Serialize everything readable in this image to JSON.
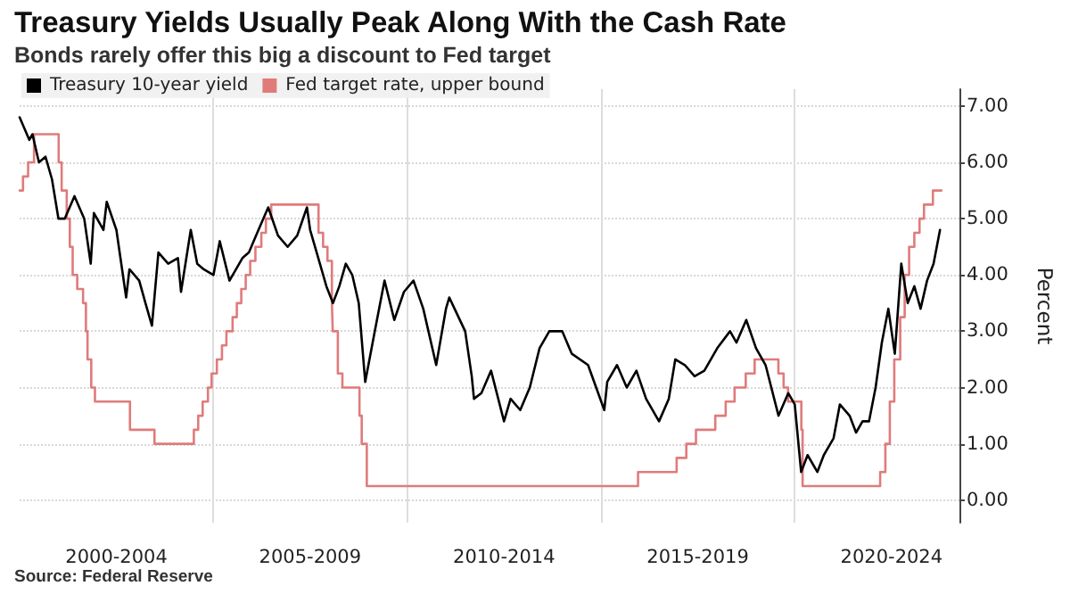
{
  "chart_data": {
    "type": "line",
    "title": "Treasury Yields Usually Peak Along With the Cash Rate",
    "subtitle": "Bonds rarely offer this big a discount to Fed target",
    "ylabel": "Percent",
    "annotations": [
      "Source: Federal Reserve"
    ],
    "series": [
      {
        "name": "Treasury 10-year yield",
        "color": "#000000",
        "x": [
          "2000-01",
          "2000-04",
          "2000-05",
          "2000-07",
          "2000-09",
          "2000-11",
          "2001-01",
          "2001-03",
          "2001-06",
          "2001-09",
          "2001-11",
          "2001-12",
          "2002-03",
          "2002-04",
          "2002-07",
          "2002-10",
          "2002-11",
          "2003-02",
          "2003-04",
          "2003-06",
          "2003-08",
          "2003-11",
          "2004-02",
          "2004-03",
          "2004-06",
          "2004-08",
          "2004-10",
          "2005-01",
          "2005-03",
          "2005-06",
          "2005-10",
          "2005-12",
          "2006-03",
          "2006-06",
          "2006-09",
          "2006-12",
          "2007-03",
          "2007-06",
          "2007-07",
          "2007-10",
          "2007-12",
          "2008-02",
          "2008-04",
          "2008-06",
          "2008-08",
          "2008-10",
          "2008-12",
          "2009-03",
          "2009-06",
          "2009-09",
          "2009-12",
          "2010-03",
          "2010-06",
          "2010-10",
          "2011-01",
          "2011-02",
          "2011-07",
          "2011-09-01",
          "2011-09-22",
          "2011-12",
          "2012-03",
          "2012-07",
          "2012-09",
          "2012-12",
          "2013-03",
          "2013-06",
          "2013-09",
          "2014-01",
          "2014-04",
          "2014-09",
          "2015-02",
          "2015-03",
          "2015-06",
          "2015-09",
          "2015-12",
          "2016-03",
          "2016-07",
          "2016-10",
          "2016-12",
          "2017-03",
          "2017-06",
          "2017-09",
          "2018-01",
          "2018-05",
          "2018-07",
          "2018-10",
          "2019-01",
          "2019-04",
          "2019-08",
          "2019-11",
          "2020-01",
          "2020-03",
          "2020-05",
          "2020-08",
          "2020-10",
          "2021-01",
          "2021-03",
          "2021-06",
          "2021-08",
          "2021-10",
          "2021-12",
          "2022-02",
          "2022-04",
          "2022-06",
          "2022-08",
          "2022-10",
          "2022-12",
          "2023-02",
          "2023-04",
          "2023-06",
          "2023-08",
          "2023-10"
        ],
        "values": [
          6.8,
          6.4,
          6.5,
          6.0,
          6.1,
          5.7,
          5.0,
          5.0,
          5.4,
          5.0,
          4.2,
          5.1,
          4.8,
          5.3,
          4.8,
          3.6,
          4.1,
          3.9,
          3.5,
          3.1,
          4.4,
          4.2,
          4.3,
          3.7,
          4.8,
          4.2,
          4.1,
          4.0,
          4.6,
          3.9,
          4.3,
          4.4,
          4.8,
          5.2,
          4.7,
          4.5,
          4.7,
          5.2,
          4.8,
          4.2,
          3.8,
          3.5,
          3.8,
          4.2,
          4.0,
          3.5,
          2.1,
          3.0,
          3.9,
          3.2,
          3.7,
          3.9,
          3.4,
          2.4,
          3.4,
          3.6,
          3.0,
          2.2,
          1.8,
          1.9,
          2.3,
          1.4,
          1.8,
          1.6,
          2.0,
          2.7,
          3.0,
          3.0,
          2.6,
          2.4,
          1.6,
          2.1,
          2.4,
          2.0,
          2.3,
          1.8,
          1.4,
          1.8,
          2.5,
          2.4,
          2.2,
          2.3,
          2.7,
          3.0,
          2.8,
          3.2,
          2.7,
          2.4,
          1.5,
          1.9,
          1.7,
          0.5,
          0.8,
          0.5,
          0.8,
          1.1,
          1.7,
          1.5,
          1.2,
          1.4,
          1.4,
          2.0,
          2.8,
          3.4,
          2.6,
          4.2,
          3.5,
          3.8,
          3.4,
          3.9,
          4.2,
          4.8
        ]
      },
      {
        "name": "Fed target rate, upper bound",
        "color": "#e07b7b",
        "type": "step",
        "x": [
          "2000-01-01",
          "2000-02-02",
          "2000-03-21",
          "2000-05-16",
          "2001-01-03",
          "2001-01-31",
          "2001-03-20",
          "2001-04-18",
          "2001-05-15",
          "2001-06-27",
          "2001-08-21",
          "2001-09-17",
          "2001-10-02",
          "2001-11-06",
          "2001-12-11",
          "2002-11-06",
          "2003-06-25",
          "2004-06-30",
          "2004-08-10",
          "2004-09-21",
          "2004-11-10",
          "2004-12-14",
          "2005-02-02",
          "2005-03-22",
          "2005-05-03",
          "2005-06-30",
          "2005-08-09",
          "2005-09-20",
          "2005-11-01",
          "2005-12-13",
          "2006-01-31",
          "2006-03-28",
          "2006-05-10",
          "2006-06-29",
          "2007-09-18",
          "2007-10-31",
          "2007-12-11",
          "2008-01-22",
          "2008-01-30",
          "2008-03-18",
          "2008-04-30",
          "2008-10-08",
          "2008-10-29",
          "2008-12-16",
          "2015-12-16",
          "2016-12-14",
          "2017-03-15",
          "2017-06-14",
          "2017-12-13",
          "2018-03-21",
          "2018-06-13",
          "2018-09-26",
          "2018-12-19",
          "2019-07-31",
          "2019-09-18",
          "2019-10-30",
          "2020-03-03",
          "2020-03-15",
          "2022-03-16",
          "2022-05-04",
          "2022-06-15",
          "2022-07-27",
          "2022-09-21",
          "2022-11-02",
          "2022-12-14",
          "2023-02-01",
          "2023-03-22",
          "2023-05-03",
          "2023-07-26",
          "2023-10-15"
        ],
        "values": [
          5.5,
          5.75,
          6.0,
          6.5,
          6.0,
          5.5,
          5.0,
          4.5,
          4.0,
          3.75,
          3.5,
          3.0,
          2.5,
          2.0,
          1.75,
          1.25,
          1.0,
          1.25,
          1.5,
          1.75,
          2.0,
          2.25,
          2.5,
          2.75,
          3.0,
          3.25,
          3.5,
          3.75,
          4.0,
          4.25,
          4.5,
          4.75,
          5.0,
          5.25,
          4.75,
          4.5,
          4.25,
          3.5,
          3.0,
          2.25,
          2.0,
          1.5,
          1.0,
          0.25,
          0.5,
          0.75,
          1.0,
          1.25,
          1.5,
          1.75,
          2.0,
          2.25,
          2.5,
          2.25,
          2.0,
          1.75,
          1.25,
          0.25,
          0.5,
          1.0,
          1.75,
          2.5,
          3.25,
          4.0,
          4.5,
          4.75,
          5.0,
          5.25,
          5.5,
          5.5
        ]
      }
    ],
    "xlim": [
      "2000-01-01",
      "2024-04-01"
    ],
    "xticks": [
      {
        "value": "2002-07-01",
        "label": "2000-2004"
      },
      {
        "value": "2005-01-01",
        "label": null
      },
      {
        "value": "2007-07-01",
        "label": "2005-2009"
      },
      {
        "value": "2010-01-01",
        "label": null
      },
      {
        "value": "2012-07-01",
        "label": "2010-2014"
      },
      {
        "value": "2015-01-01",
        "label": null
      },
      {
        "value": "2017-07-01",
        "label": "2015-2019"
      },
      {
        "value": "2020-01-01",
        "label": null
      },
      {
        "value": "2022-07-01",
        "label": "2020-2024"
      }
    ],
    "ylim": [
      -0.4,
      7.3
    ],
    "yticks": [
      {
        "value": 0,
        "label": "0.00"
      },
      {
        "value": 1,
        "label": "1.00"
      },
      {
        "value": 2,
        "label": "2.00"
      },
      {
        "value": 3,
        "label": "3.00"
      },
      {
        "value": 4,
        "label": "4.00"
      },
      {
        "value": 5,
        "label": "5.00"
      },
      {
        "value": 6,
        "label": "6.00"
      },
      {
        "value": 7,
        "label": "7.00"
      }
    ],
    "grid": true,
    "legend": "top left",
    "marker": "none",
    "line_style": "solid"
  }
}
